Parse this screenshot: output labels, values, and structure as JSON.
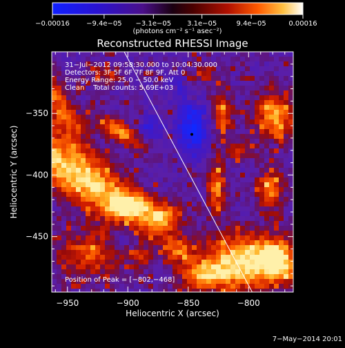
{
  "chart_data": {
    "type": "heatmap",
    "title": "Reconstructed RHESSI Image",
    "xlabel": "Heliocentric X (arcsec)",
    "ylabel": "Heliocentric Y (arcsec)",
    "xlim": [
      -963,
      -763
    ],
    "ylim": [
      -495,
      -300
    ],
    "xticks": [
      -950,
      -900,
      -850,
      -800
    ],
    "yticks": [
      -350,
      -400,
      -450
    ],
    "xtick_labels": [
      "−950",
      "−900",
      "−850",
      "−800"
    ],
    "ytick_labels": [
      "−350",
      "−400",
      "−450"
    ],
    "colorbar": {
      "range": [
        -0.00016,
        0.00016
      ],
      "tick_values": [
        -0.00016,
        -9.4e-05,
        -3.1e-05,
        3.1e-05,
        9.4e-05,
        0.00016
      ],
      "tick_labels": [
        "−0.00016",
        "−9.4e−05",
        "−3.1e−05",
        "3.1e−05",
        "9.4e−05",
        "0.00016"
      ],
      "unit_label": "(photons cm⁻² s⁻¹ asec⁻²)"
    },
    "info_lines": [
      "31−Jul−2012 09:58:30.000 to 10:04:30.000",
      "Detectors: 3F 5F 6F 7F 8F 9F, Att 0",
      "Energy Range: 25.0 − 50.0 keV",
      "Clean    Total counts: 5.69E+03"
    ],
    "peak_label": "Position of Peak = [−802,−468]",
    "peak": [
      -802,
      -468
    ],
    "marker": [
      -847,
      -367
    ],
    "limb_line": [
      [
        -903,
        -300
      ],
      [
        -797,
        -495
      ]
    ],
    "hotspots": [
      {
        "x": -942,
        "y": -400,
        "sx": 14,
        "sy": 60,
        "angle": 58,
        "amp": 1.2
      },
      {
        "x": -960,
        "y": -340,
        "sx": 8,
        "sy": 30,
        "angle": 30,
        "amp": 0.8
      },
      {
        "x": -932,
        "y": -465,
        "sx": 20,
        "sy": 14,
        "angle": 0,
        "amp": 0.7
      },
      {
        "x": -906,
        "y": -365,
        "sx": 16,
        "sy": 6,
        "angle": -30,
        "amp": 0.95
      },
      {
        "x": -898,
        "y": -425,
        "sx": 12,
        "sy": 6,
        "angle": 0,
        "amp": 0.85
      },
      {
        "x": -872,
        "y": -435,
        "sx": 10,
        "sy": 7,
        "angle": 20,
        "amp": 0.75
      },
      {
        "x": -858,
        "y": -462,
        "sx": 8,
        "sy": 6,
        "angle": 0,
        "amp": 0.6
      },
      {
        "x": -822,
        "y": -350,
        "sx": 6,
        "sy": 12,
        "angle": 0,
        "amp": 0.8
      },
      {
        "x": -827,
        "y": -410,
        "sx": 5,
        "sy": 16,
        "angle": 0,
        "amp": 0.9
      },
      {
        "x": -808,
        "y": -380,
        "sx": 8,
        "sy": 6,
        "angle": 0,
        "amp": 0.6
      },
      {
        "x": -778,
        "y": -352,
        "sx": 12,
        "sy": 14,
        "angle": 0,
        "amp": 1.0
      },
      {
        "x": -782,
        "y": -412,
        "sx": 8,
        "sy": 12,
        "angle": 0,
        "amp": 0.85
      },
      {
        "x": -803,
        "y": -470,
        "sx": 22,
        "sy": 16,
        "angle": 0,
        "amp": 1.25
      },
      {
        "x": -838,
        "y": -482,
        "sx": 14,
        "sy": 8,
        "angle": 0,
        "amp": 0.9
      },
      {
        "x": -775,
        "y": -470,
        "sx": 10,
        "sy": 12,
        "angle": 0,
        "amp": 1.05
      },
      {
        "x": -918,
        "y": -318,
        "sx": 10,
        "sy": 5,
        "angle": 0,
        "amp": 0.5
      },
      {
        "x": -835,
        "y": -318,
        "sx": 8,
        "sy": 6,
        "angle": 0,
        "amp": 0.45
      },
      {
        "x": -888,
        "y": -468,
        "sx": 6,
        "sy": 6,
        "angle": 0,
        "amp": 0.5
      }
    ],
    "coldspots": [
      {
        "x": -846,
        "y": -362,
        "sx": 8,
        "sy": 14,
        "amp": 1.2
      },
      {
        "x": -882,
        "y": -362,
        "sx": 8,
        "sy": 8,
        "amp": 0.5
      },
      {
        "x": -903,
        "y": -450,
        "sx": 8,
        "sy": 6,
        "amp": 0.4
      },
      {
        "x": -858,
        "y": -330,
        "sx": 6,
        "sy": 6,
        "amp": 0.45
      }
    ],
    "grid": false
  },
  "footer": {
    "date": "7−May−2014 20:01"
  },
  "colors": {
    "background": "#000000",
    "text": "#ffffff",
    "base_pixel": "#5a1ea8"
  }
}
